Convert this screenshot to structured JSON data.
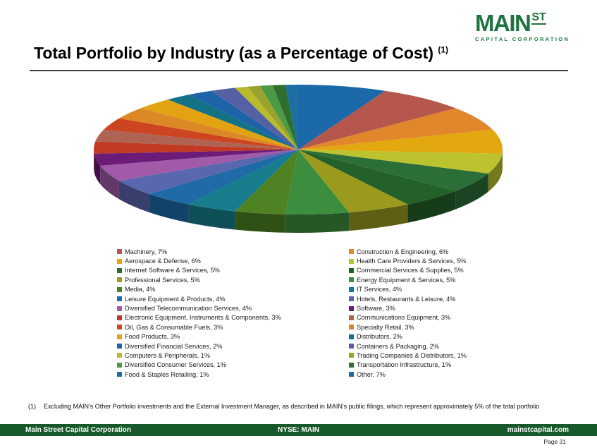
{
  "logo": {
    "main": "MAIN",
    "st": "ST",
    "subtitle": "CAPITAL CORPORATION",
    "color": "#1E7340"
  },
  "title": {
    "text": "Total Portfolio by Industry (as a Percentage of Cost)",
    "footnote_ref": "(1)"
  },
  "chart_data": {
    "type": "pie",
    "three_d": true,
    "title": "Total Portfolio by Industry (as a Percentage of Cost)",
    "unit": "%",
    "legend_position": "bottom, two columns, row-major order",
    "orientation": "clockwise, 'Other' slice starting at 12 o'clock",
    "items": [
      {
        "label": "Machinery",
        "value": 7,
        "color": "#B5574C"
      },
      {
        "label": "Construction & Engineering",
        "value": 6,
        "color": "#E2862B"
      },
      {
        "label": "Aerospace & Defense",
        "value": 6,
        "color": "#E3A80F"
      },
      {
        "label": "Health Care Providers & Services",
        "value": 5,
        "color": "#BCC32F"
      },
      {
        "label": "Internet Software & Services",
        "value": 5,
        "color": "#2C6E38"
      },
      {
        "label": "Commercial Services & Supplies",
        "value": 5,
        "color": "#246128"
      },
      {
        "label": "Professional Services",
        "value": 5,
        "color": "#9A9A1F"
      },
      {
        "label": "Energy Equipment & Services",
        "value": 5,
        "color": "#3C8E3E"
      },
      {
        "label": "Media",
        "value": 4,
        "color": "#4E8223"
      },
      {
        "label": "IT Services",
        "value": 4,
        "color": "#177D8C"
      },
      {
        "label": "Leisure Equipment & Products",
        "value": 4,
        "color": "#1E6BA8"
      },
      {
        "label": "Hotels, Restaurants & Leisure",
        "value": 4,
        "color": "#5A66AE"
      },
      {
        "label": "Diversified Telecommunication Services",
        "value": 4,
        "color": "#A05AA8"
      },
      {
        "label": "Software",
        "value": 3,
        "color": "#6B1B78"
      },
      {
        "label": "Electronic Equipment, Instruments & Components",
        "value": 3,
        "color": "#C23A24"
      },
      {
        "label": "Communications Equipment",
        "value": 3,
        "color": "#AE6353"
      },
      {
        "label": "Oil, Gas & Consumable Fuels",
        "value": 3,
        "color": "#CC4420"
      },
      {
        "label": "Specialty Retail",
        "value": 3,
        "color": "#DD8826"
      },
      {
        "label": "Food Products",
        "value": 3,
        "color": "#E2A312"
      },
      {
        "label": "Distributors",
        "value": 2,
        "color": "#137285"
      },
      {
        "label": "Diversified Financial Services",
        "value": 2,
        "color": "#1E62A8"
      },
      {
        "label": "Containers & Packaging",
        "value": 2,
        "color": "#5560A5"
      },
      {
        "label": "Computers & Peripherals",
        "value": 1,
        "color": "#B8BC2C"
      },
      {
        "label": "Trading Companies & Distributors",
        "value": 1,
        "color": "#9AA32E"
      },
      {
        "label": "Diversified Consumer Services",
        "value": 1,
        "color": "#4C9A45"
      },
      {
        "label": "Transportation Infrastructure",
        "value": 1,
        "color": "#2E6E2E"
      },
      {
        "label": "Food & Staples Retailing",
        "value": 1,
        "color": "#1C6FA0"
      },
      {
        "label": "Other",
        "value": 7,
        "color": "#1B69A8"
      }
    ]
  },
  "footnote": {
    "marker": "(1)",
    "text": "Excluding MAIN's Other Portfolio investments and the External Investment Manager, as described in MAIN's public filings, which represent approximately 5% of the total portfolio"
  },
  "footer": {
    "left": "Main Street Capital Corporation",
    "center": "NYSE: MAIN",
    "right": "mainstcapital.com",
    "bar_color": "#17592B",
    "page_label": "Page 31"
  }
}
